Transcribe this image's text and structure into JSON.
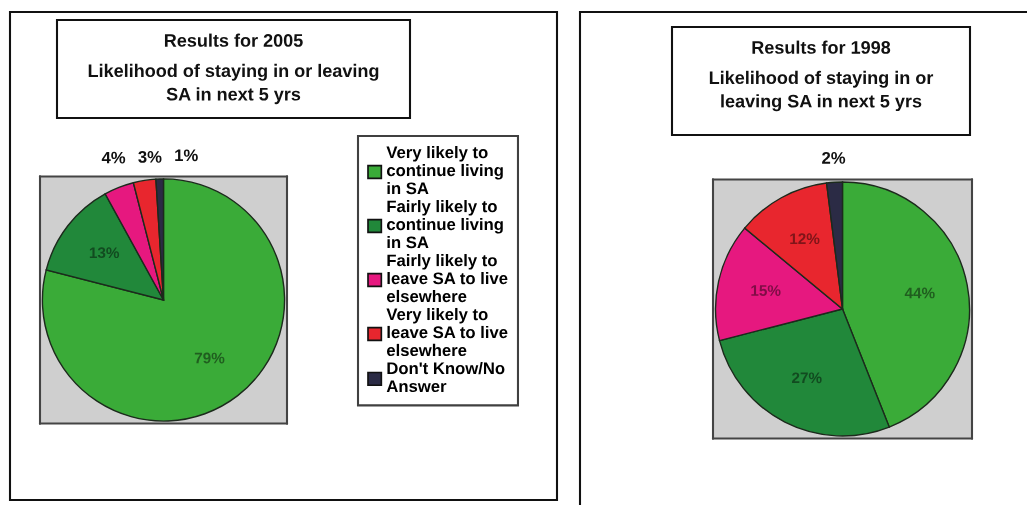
{
  "chart_data": [
    {
      "type": "pie",
      "title": "Results for 2005",
      "subtitle": "Likelihood of staying in or leaving\nSA in next 5 yrs",
      "categories": [
        "Very likely to\ncontinue living\nin SA",
        "Fairly likely to\ncontinue living\nin SA",
        "Fairly likely to\nleave SA to live\nelsewhere",
        "Very likely to\nleave SA to live\nelsewhere",
        "Don't Know/No\nAnswer"
      ],
      "values": [
        79,
        13,
        4,
        3,
        1
      ],
      "value_labels": [
        "79%",
        "13%",
        "4%",
        "3%",
        "1%"
      ],
      "colors": [
        "#3aab38",
        "#21883a",
        "#e6187f",
        "#e8262e",
        "#2b2b45"
      ],
      "legend": "right"
    },
    {
      "type": "pie",
      "title": "Results for 1998",
      "subtitle": "Likelihood of staying in or\nleaving SA in next 5 yrs",
      "categories": [
        null,
        null,
        null,
        null,
        null
      ],
      "values": [
        44,
        27,
        15,
        12,
        2
      ],
      "value_labels": [
        "44%",
        "27%",
        "15%",
        "12%",
        "2%"
      ],
      "colors": [
        "#3aab38",
        "#21883a",
        "#e6187f",
        "#e8262e",
        "#2b2b45"
      ]
    }
  ]
}
